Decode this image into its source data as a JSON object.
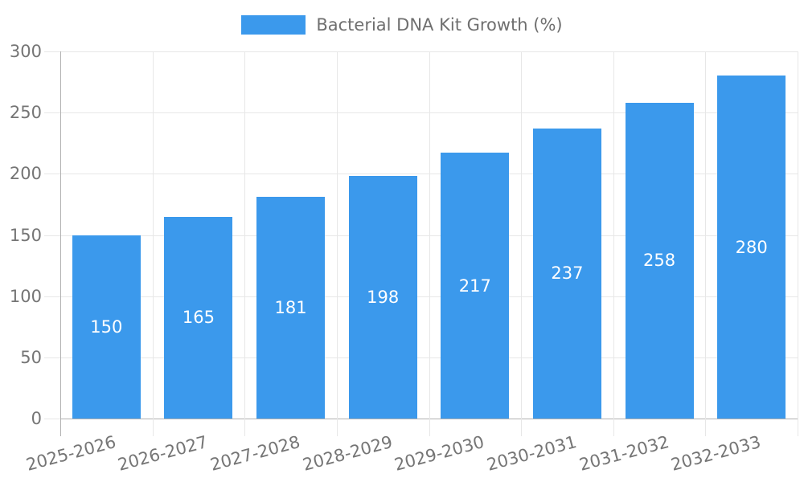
{
  "chart_data": {
    "type": "bar",
    "title": "Bacterial DNA Kit Growth (%)",
    "categories": [
      "2025-2026",
      "2026-2027",
      "2027-2028",
      "2028-2029",
      "2029-2030",
      "2030-2031",
      "2031-2032",
      "2032-2033"
    ],
    "values": [
      150,
      165,
      181,
      198,
      217,
      237,
      258,
      280
    ],
    "xlabel": "",
    "ylabel": "",
    "ylim": [
      0,
      300
    ],
    "yticks": [
      0,
      50,
      100,
      150,
      200,
      250,
      300
    ],
    "grid": true,
    "legend_position": "top-center",
    "x_label_rotation_deg": -15,
    "colors": {
      "bar": "#3b99ec",
      "value_label": "#ffffff",
      "grid": "#e7e7e7",
      "axis_line": "#b0b0b0",
      "tick_label": "#757575",
      "legend_text": "#6f6f6f",
      "background": "#ffffff"
    }
  }
}
